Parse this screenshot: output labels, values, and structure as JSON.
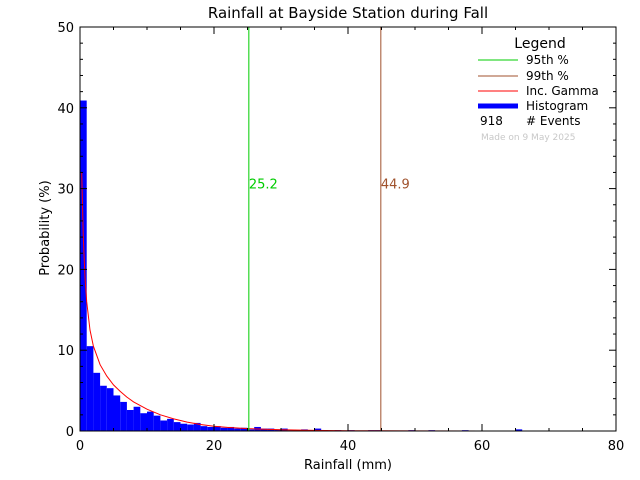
{
  "chart_data": {
    "type": "bar",
    "title": "Rainfall at Bayside Station during Fall",
    "xlabel": "Rainfall (mm)",
    "ylabel": "Probability (%)",
    "xlim": [
      0,
      80
    ],
    "ylim": [
      0,
      50
    ],
    "x_ticks": [
      0,
      20,
      40,
      60,
      80
    ],
    "y_ticks": [
      0,
      10,
      20,
      30,
      40,
      50
    ],
    "bin_width": 1,
    "histogram": [
      40.9,
      10.5,
      7.2,
      5.6,
      5.3,
      4.4,
      3.6,
      2.6,
      3.0,
      2.2,
      2.4,
      1.9,
      1.3,
      1.5,
      1.1,
      0.9,
      0.8,
      1.0,
      0.6,
      0.5,
      0.6,
      0.4,
      0.5,
      0.3,
      0.4,
      0.2,
      0.5,
      0.3,
      0.3,
      0.2,
      0.3,
      0.1,
      0.1,
      0.2,
      0.1,
      0.3,
      0.1,
      0.0,
      0.1,
      0.0,
      0.1,
      0.0,
      0.0,
      0.1,
      0.1,
      0.0,
      0.0,
      0.0,
      0.0,
      0.1,
      0.0,
      0.0,
      0.1,
      0.0,
      0.0,
      0.0,
      0.0,
      0.1,
      0.0,
      0.0,
      0.0,
      0.0,
      0.0,
      0.0,
      0.0,
      0.2,
      0.0,
      0.0,
      0.0,
      0.0,
      0.0,
      0.0,
      0.0,
      0.0,
      0.0,
      0.0,
      0.0,
      0.0,
      0.0,
      0.0
    ],
    "gamma_curve": {
      "x": [
        0.25,
        0.5,
        0.75,
        1,
        1.5,
        2,
        3,
        4,
        5,
        6,
        7,
        8,
        10,
        12,
        14,
        16,
        18,
        20,
        22,
        25,
        30,
        35,
        40,
        50,
        60,
        70,
        80
      ],
      "y": [
        32,
        24,
        19,
        16,
        12.5,
        10.5,
        8.2,
        6.8,
        5.7,
        4.9,
        4.2,
        3.6,
        2.7,
        2.0,
        1.5,
        1.1,
        0.8,
        0.6,
        0.45,
        0.3,
        0.15,
        0.08,
        0.04,
        0.01,
        0.0,
        0.0,
        0.0
      ]
    },
    "percentile_95": {
      "value": 25.2,
      "label": "25.2",
      "color": "#00cc00"
    },
    "percentile_99": {
      "value": 44.9,
      "label": "44.9",
      "color": "#a0522d"
    },
    "legend": {
      "title": "Legend",
      "position": "top-right",
      "entries": [
        {
          "label": "95th %",
          "color": "#00cc00",
          "kind": "line"
        },
        {
          "label": "99th %",
          "color": "#a0522d",
          "kind": "line"
        },
        {
          "label": "Inc. Gamma",
          "color": "#ff0000",
          "kind": "line"
        },
        {
          "label": "Histogram",
          "color": "#0000ff",
          "kind": "bar"
        }
      ],
      "events_count": "918",
      "events_label": "# Events",
      "made_on": "Made on 9 May 2025"
    },
    "colors": {
      "histogram": "#0000ff",
      "gamma": "#ff0000",
      "axes": "#000000",
      "made_on": "#c8c8c8"
    }
  }
}
